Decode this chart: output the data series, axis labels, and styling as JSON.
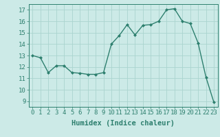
{
  "x": [
    0,
    1,
    2,
    3,
    4,
    5,
    6,
    7,
    8,
    9,
    10,
    11,
    12,
    13,
    14,
    15,
    16,
    17,
    18,
    19,
    20,
    21,
    22,
    23
  ],
  "y": [
    13.0,
    12.8,
    11.5,
    12.1,
    12.1,
    11.5,
    11.45,
    11.35,
    11.35,
    11.5,
    14.0,
    14.75,
    15.7,
    14.8,
    15.65,
    15.7,
    16.0,
    17.0,
    17.1,
    16.0,
    15.8,
    14.1,
    11.1,
    8.9
  ],
  "line_color": "#2d7f6e",
  "marker": "D",
  "marker_size": 2.0,
  "linewidth": 1.0,
  "bg_color": "#cceae7",
  "grid_color": "#aad4cf",
  "xlabel": "Humidex (Indice chaleur)",
  "xlabel_fontsize": 7.5,
  "xtick_labels": [
    "0",
    "1",
    "2",
    "3",
    "4",
    "5",
    "6",
    "7",
    "8",
    "9",
    "10",
    "11",
    "12",
    "13",
    "14",
    "15",
    "16",
    "17",
    "18",
    "19",
    "20",
    "21",
    "22",
    "23"
  ],
  "ylim": [
    8.5,
    17.5
  ],
  "yticks": [
    9,
    10,
    11,
    12,
    13,
    14,
    15,
    16,
    17
  ],
  "tick_fontsize": 6.5,
  "spine_color": "#2d7f6e"
}
